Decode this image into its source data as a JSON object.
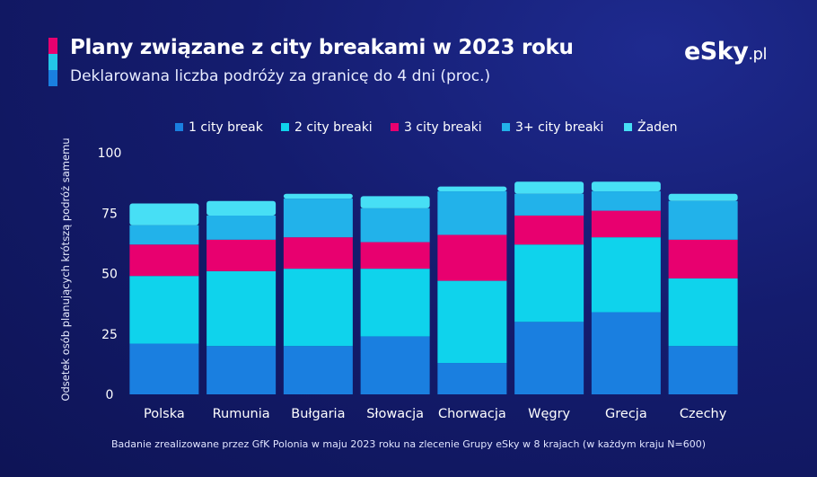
{
  "header": {
    "title": "Plany związane z city breakami w 2023 roku",
    "subtitle": "Deklarowana liczba podróży za granicę do 4 dni (proc.)",
    "accent_colors": [
      "#e8006f",
      "#23c6e8",
      "#1a7fe0"
    ]
  },
  "logo": {
    "main": "eSky",
    "suffix": ".pl"
  },
  "footnote": "Badanie zrealizowane przez GfK Polonia w maju 2023 roku na zlecenie Grupy eSky w 8 krajach (w każdym kraju N=600)",
  "chart_data": {
    "type": "bar",
    "stacked": true,
    "title": "Plany związane z city breakami w 2023 roku",
    "subtitle": "Deklarowana liczba podróży za granicę do 4 dni (proc.)",
    "xlabel": "",
    "ylabel": "Odsetek osób planujących krótszą podróż samemu",
    "ylim": [
      0,
      100
    ],
    "yticks": [
      0,
      25,
      50,
      75,
      100
    ],
    "legend_position": "top",
    "grid": false,
    "categories": [
      "Polska",
      "Rumunia",
      "Bułgaria",
      "Słowacja",
      "Chorwacja",
      "Węgry",
      "Grecja",
      "Czechy"
    ],
    "series": [
      {
        "name": "1 city break",
        "color": "#1a7fe0",
        "values": [
          21,
          20,
          20,
          24,
          13,
          30,
          34,
          20
        ]
      },
      {
        "name": "2 city breaki",
        "color": "#0fd3ec",
        "values": [
          28,
          31,
          32,
          28,
          34,
          32,
          31,
          28
        ]
      },
      {
        "name": "3 city breaki",
        "color": "#e8006f",
        "values": [
          13,
          13,
          13,
          11,
          19,
          12,
          11,
          16
        ]
      },
      {
        "name": "3+ city breaki",
        "color": "#22b2ea",
        "values": [
          8,
          10,
          16,
          14,
          18,
          9,
          8,
          16
        ]
      },
      {
        "name": "Żaden",
        "color": "#47dff5",
        "values": [
          9,
          6,
          2,
          5,
          2,
          5,
          4,
          3
        ]
      }
    ]
  }
}
